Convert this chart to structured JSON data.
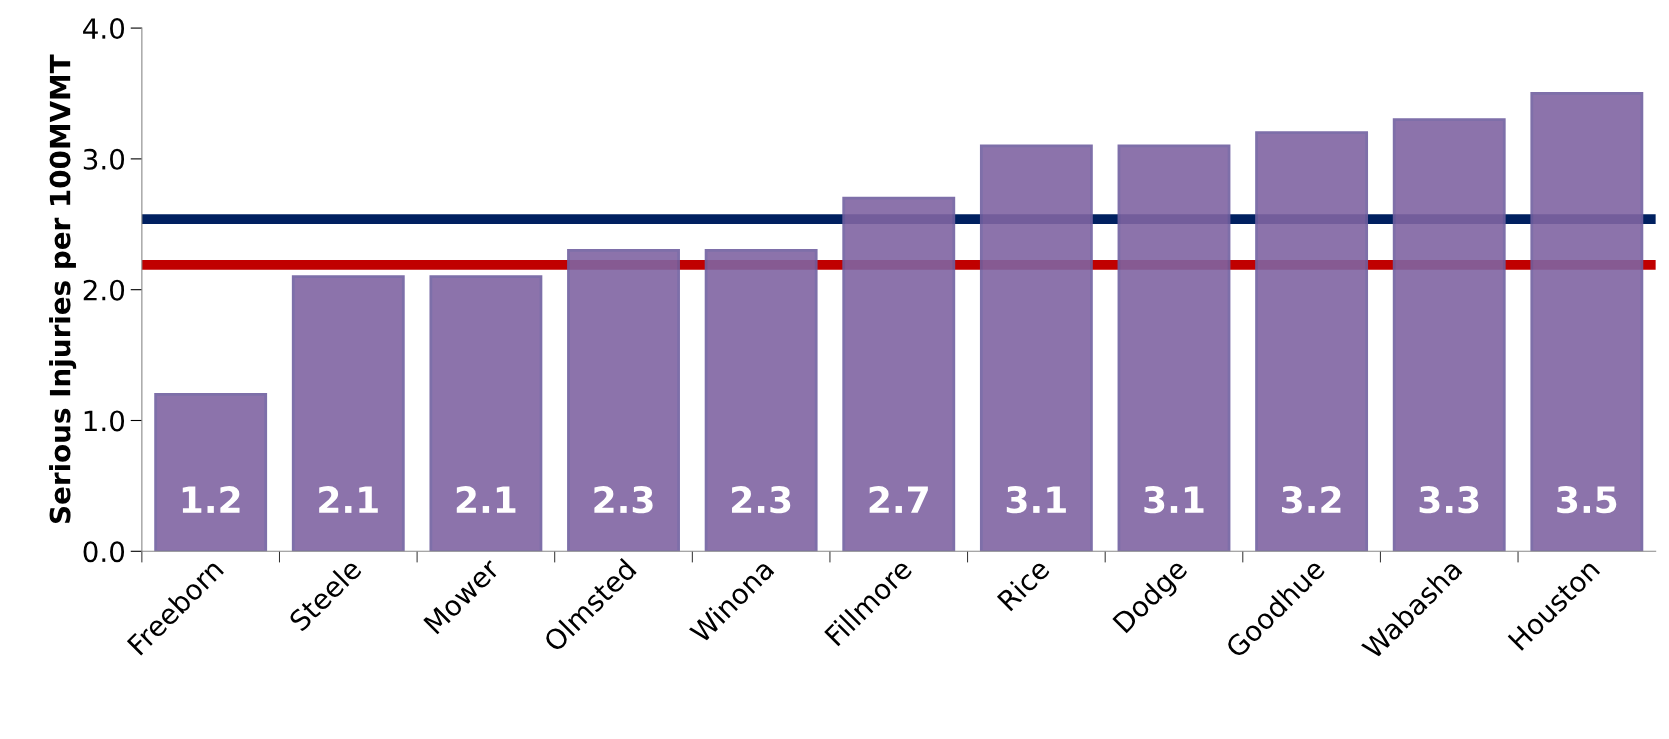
{
  "chart_data": {
    "type": "bar",
    "ylabel": "Serious Injuries per 100MVMT",
    "categories": [
      "Freeborn",
      "Steele",
      "Mower",
      "Olmsted",
      "Winona",
      "Fillmore",
      "Rice",
      "Dodge",
      "Goodhue",
      "Wabasha",
      "Houston"
    ],
    "values": [
      1.2,
      2.1,
      2.1,
      2.3,
      2.3,
      2.7,
      3.1,
      3.1,
      3.2,
      3.3,
      3.5
    ],
    "color": "#8064a2",
    "data_labels": true,
    "ylim": [
      0,
      4
    ],
    "yticks": [
      {
        "value": 0,
        "label": "0.0"
      },
      {
        "value": 1,
        "label": "1.0"
      },
      {
        "value": 2,
        "label": "2.0"
      },
      {
        "value": 3,
        "label": "3.0"
      },
      {
        "value": 4,
        "label": "4.0"
      }
    ],
    "ref_lines": [
      {
        "axis": "y",
        "value": 2.54,
        "label": null,
        "color": "#002060"
      },
      {
        "axis": "y",
        "value": 2.19,
        "label": null,
        "color": "#c00000"
      }
    ],
    "grid": false,
    "legend": false
  }
}
